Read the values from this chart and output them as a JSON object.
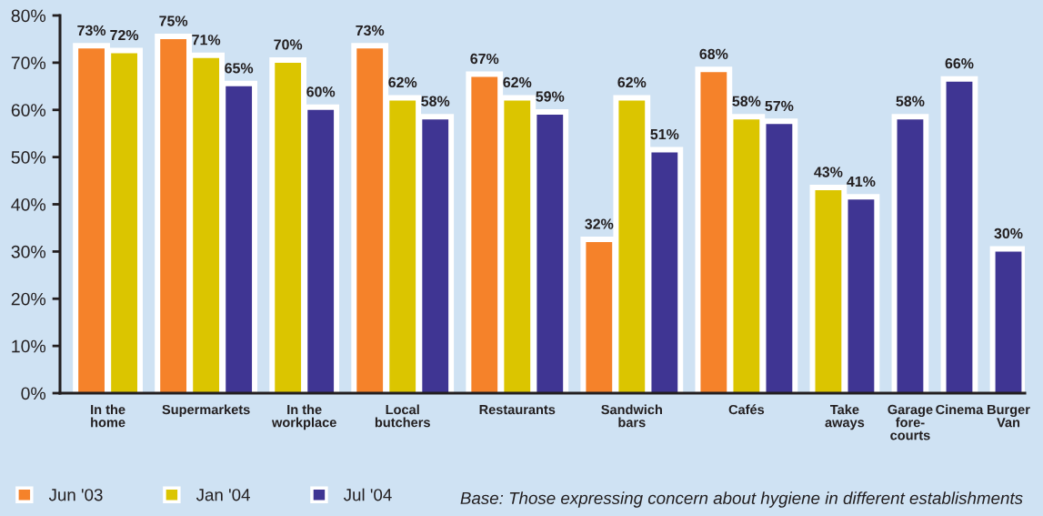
{
  "chart_data": {
    "type": "bar",
    "categories": [
      "In the\nhome",
      "Supermarkets",
      "In the\nworkplace",
      "Local\nbutchers",
      "Restaurants",
      "Sandwich\nbars",
      "Cafés",
      "Take\naways",
      "Garage\nfore-\ncourts",
      "Cinema",
      "Burger\nVan"
    ],
    "series": [
      {
        "name": "Jun '03",
        "color": "#f5822a",
        "values": [
          73,
          75,
          null,
          73,
          67,
          32,
          68,
          null,
          null,
          null,
          null
        ],
        "value_labels": [
          "73%",
          "75%",
          null,
          "73%",
          "67%",
          "32%",
          "68%",
          null,
          null,
          null,
          null
        ]
      },
      {
        "name": "Jan '04",
        "color": "#dbc500",
        "values": [
          72,
          71,
          70,
          62,
          62,
          62,
          58,
          43,
          null,
          null,
          null
        ],
        "value_labels": [
          "72%",
          "71%",
          "70%",
          "62%",
          "62%",
          "62%",
          "58%",
          "43%",
          null,
          null,
          null
        ]
      },
      {
        "name": "Jul '04",
        "color": "#3f3593",
        "values": [
          null,
          65,
          60,
          58,
          59,
          51,
          57,
          41,
          58,
          66,
          30
        ],
        "value_labels": [
          null,
          "65%",
          "60%",
          "58%",
          "59%",
          "51%",
          "57%",
          "41%",
          "58%",
          "66%",
          "30%"
        ]
      }
    ],
    "ylim": [
      0,
      80
    ],
    "yticks": [
      {
        "value": 0,
        "label": "0%"
      },
      {
        "value": 10,
        "label": "10%"
      },
      {
        "value": 20,
        "label": "20%"
      },
      {
        "value": 30,
        "label": "30%"
      },
      {
        "value": 40,
        "label": "40%"
      },
      {
        "value": 50,
        "label": "50%"
      },
      {
        "value": 60,
        "label": "60%"
      },
      {
        "value": 70,
        "label": "70%"
      },
      {
        "value": 80,
        "label": "80%"
      }
    ],
    "legend": "bottom left",
    "annotations": [
      "Base: Those expressing concern about hygiene in different establishments"
    ]
  }
}
